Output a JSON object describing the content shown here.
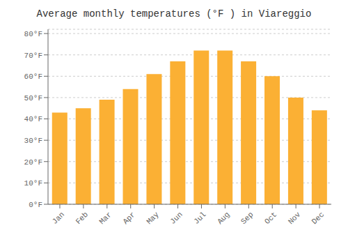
{
  "chart_data": {
    "type": "bar",
    "title": "Average monthly temperatures (°F ) in Viareggio",
    "categories": [
      "Jan",
      "Feb",
      "Mar",
      "Apr",
      "May",
      "Jun",
      "Jul",
      "Aug",
      "Sep",
      "Oct",
      "Nov",
      "Dec"
    ],
    "values": [
      43,
      45,
      49,
      54,
      61,
      67,
      72,
      72,
      67,
      60,
      50,
      44
    ],
    "color": "#FBB034",
    "ylim": [
      0,
      82
    ],
    "yticks": [
      {
        "value": 0,
        "label": "0°F"
      },
      {
        "value": 10,
        "label": "10°F"
      },
      {
        "value": 20,
        "label": "20°F"
      },
      {
        "value": 30,
        "label": "30°F"
      },
      {
        "value": 40,
        "label": "40°F"
      },
      {
        "value": 50,
        "label": "50°F"
      },
      {
        "value": 60,
        "label": "60°F"
      },
      {
        "value": 70,
        "label": "70°F"
      },
      {
        "value": 80,
        "label": "80°F"
      }
    ],
    "grid": true
  }
}
